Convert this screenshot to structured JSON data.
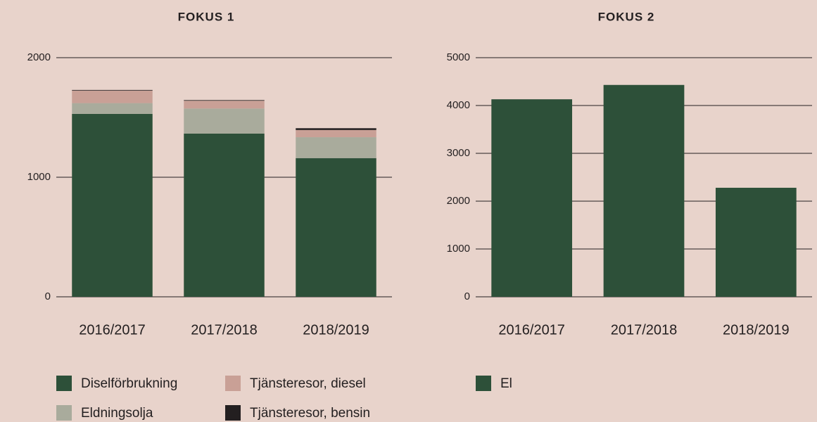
{
  "chart_data": [
    {
      "type": "bar",
      "title": "FOKUS 1",
      "stacked": true,
      "categories": [
        "2016/2017",
        "2017/2018",
        "2018/2019"
      ],
      "series": [
        {
          "name": "Diselförbrukning",
          "color": "#2d5039",
          "values": [
            1530,
            1365,
            1160
          ]
        },
        {
          "name": "Eldningsolja",
          "color": "#a9ab9c",
          "values": [
            90,
            210,
            175
          ]
        },
        {
          "name": "Tjänsteresor, diesel",
          "color": "#c9a096",
          "values": [
            105,
            65,
            60
          ]
        },
        {
          "name": "Tjänsteresor, bensin",
          "color": "#231f20",
          "values": [
            5,
            5,
            15
          ]
        }
      ],
      "ylim": [
        0,
        2000
      ],
      "yticks": [
        0,
        1000,
        2000
      ],
      "grid": true
    },
    {
      "type": "bar",
      "title": "FOKUS 2",
      "stacked": true,
      "categories": [
        "2016/2017",
        "2017/2018",
        "2018/2019"
      ],
      "series": [
        {
          "name": "El",
          "color": "#2d5039",
          "values": [
            4130,
            4430,
            2280
          ]
        }
      ],
      "ylim": [
        0,
        5000
      ],
      "yticks": [
        0,
        1000,
        2000,
        3000,
        4000,
        5000
      ],
      "grid": true
    }
  ]
}
